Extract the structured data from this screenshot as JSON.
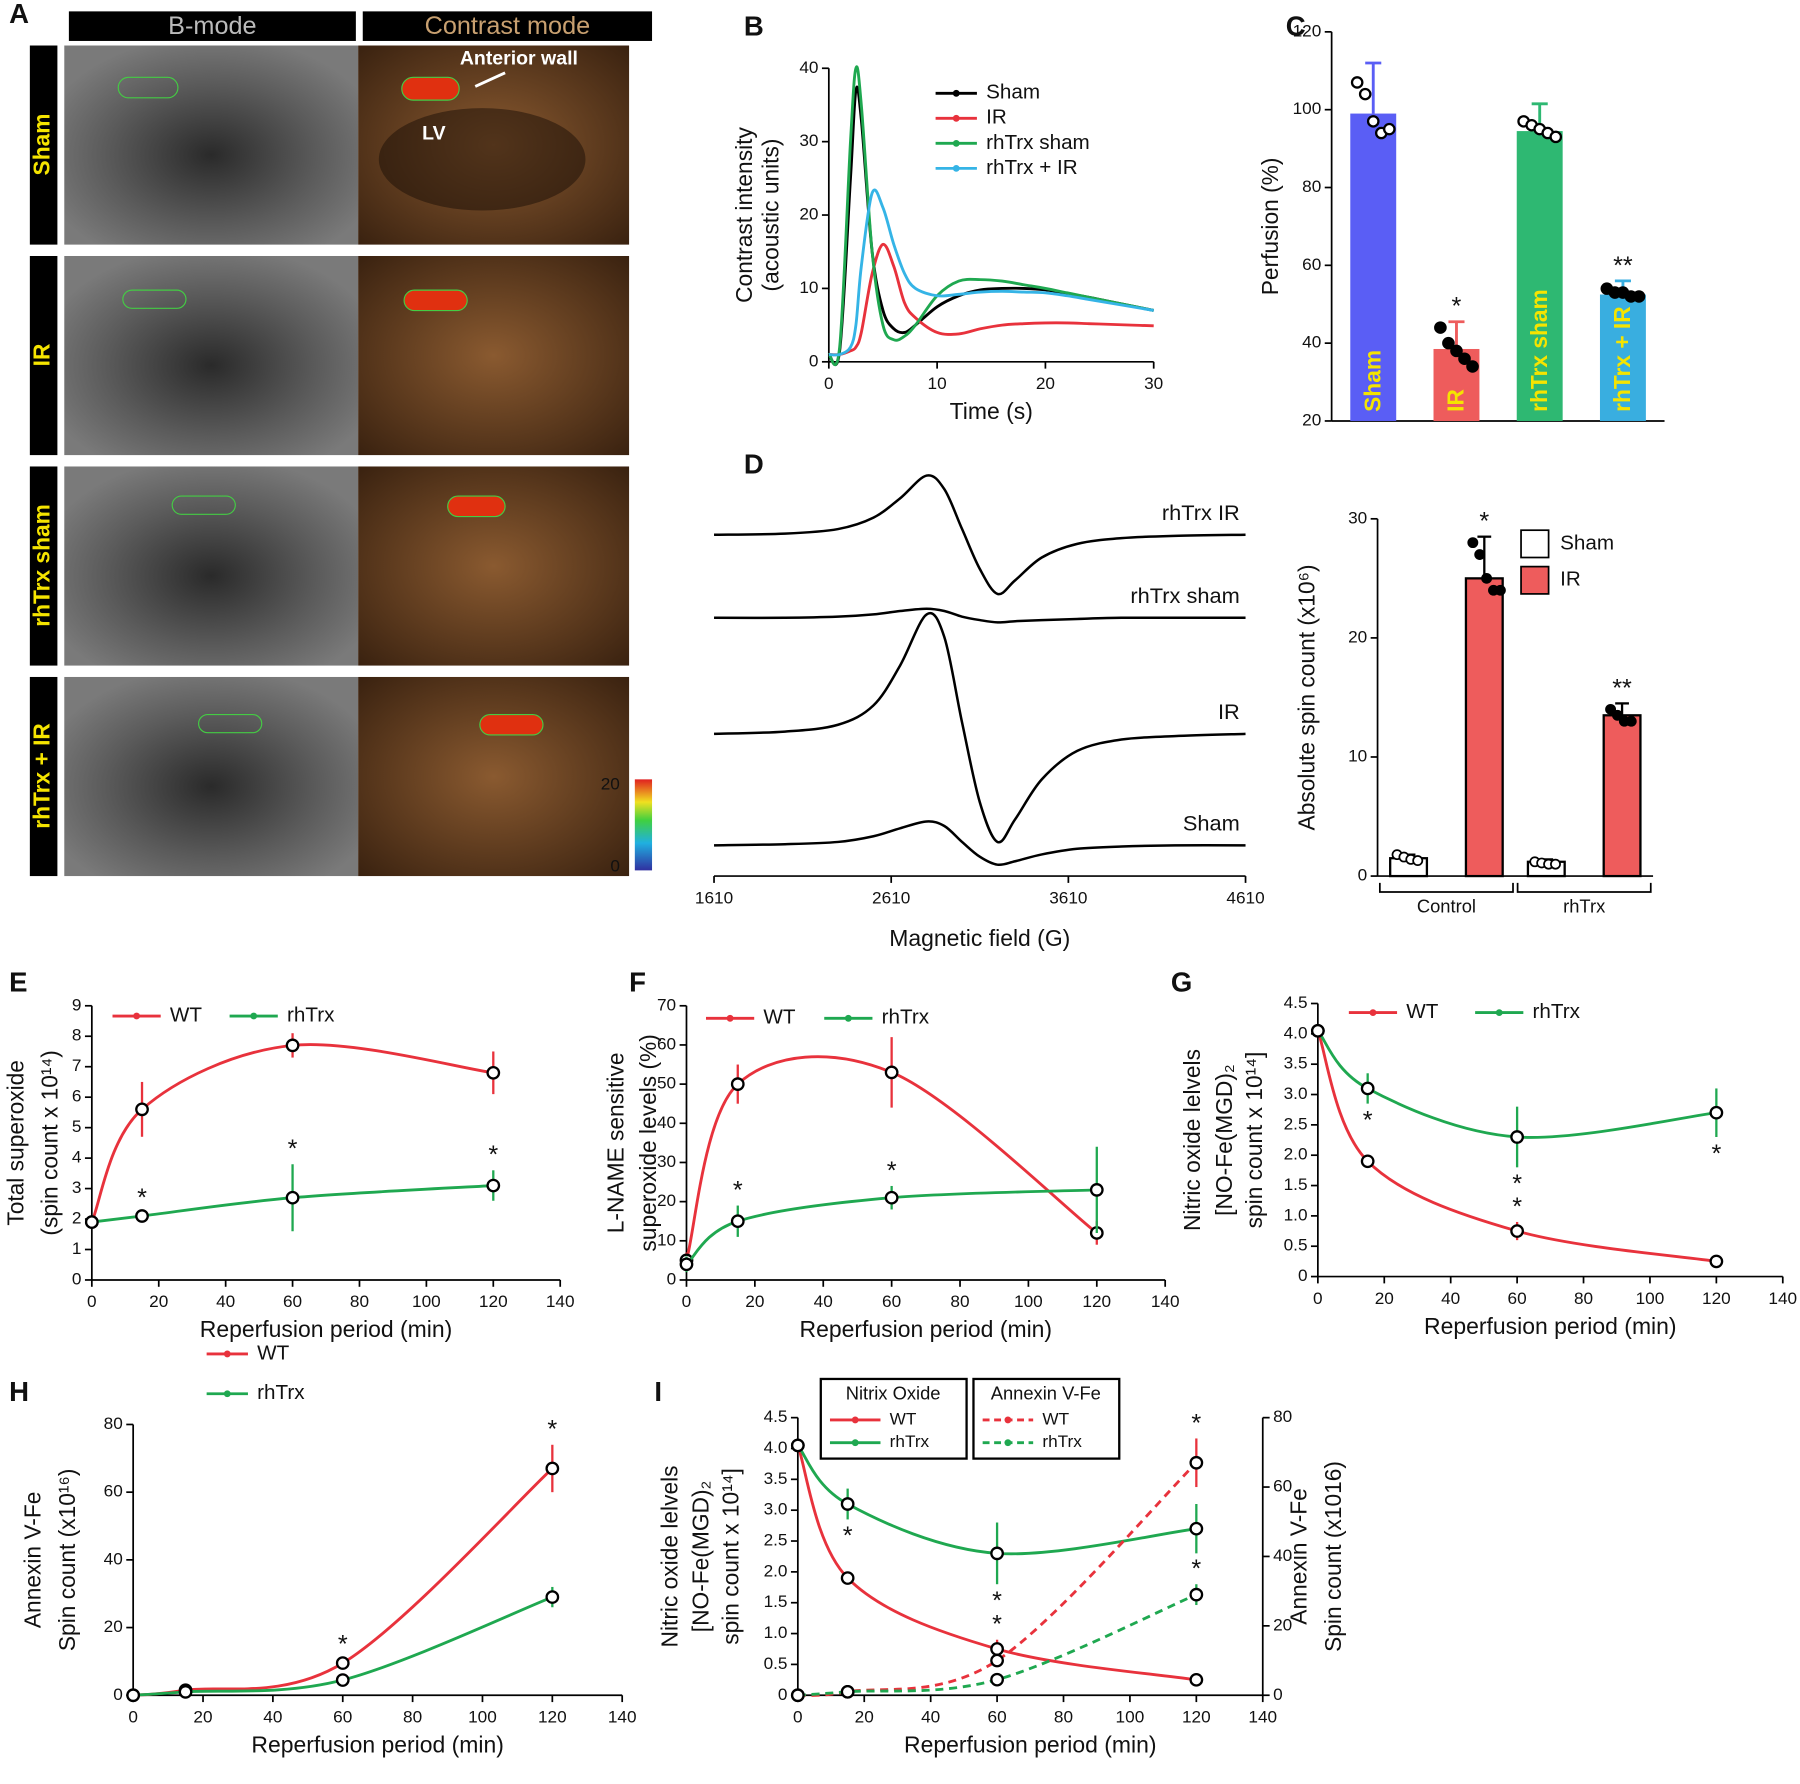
{
  "panel_a": {
    "panel": "A",
    "headers": [
      "B-mode",
      "Contrast mode"
    ],
    "rows": [
      "Sham",
      "IR",
      "rhTrx sham",
      "rhTrx + IR"
    ],
    "annotations": [
      "Anterior wall",
      "LV"
    ],
    "colorbar_ticks": [
      20,
      0
    ]
  },
  "chart_data": [
    {
      "type": "line",
      "panel": "B",
      "xlabel": "Time (s)",
      "ylabel": [
        "Contrast intensity",
        "(acoustic units)"
      ],
      "x": [
        0,
        1,
        2,
        2.5,
        3,
        4,
        5,
        6,
        7,
        8,
        10,
        12,
        14,
        16,
        18,
        20,
        22,
        24,
        26,
        28,
        30
      ],
      "xlim": [
        0,
        30
      ],
      "xticks": [
        0,
        10,
        20,
        30
      ],
      "ylim": [
        0,
        40
      ],
      "yticks": [
        0,
        10,
        20,
        30,
        40
      ],
      "series": [
        {
          "name": "Sham",
          "color": "#000000",
          "values": [
            1,
            1.5,
            25,
            37,
            33,
            15,
            7,
            4.5,
            4,
            5,
            7.5,
            9,
            9.8,
            10,
            10,
            9.8,
            9.3,
            8.8,
            8.2,
            7.6,
            7
          ]
        },
        {
          "name": "IR",
          "color": "#e8323c",
          "values": [
            1,
            1,
            1.5,
            2,
            4,
            12,
            16,
            13,
            8,
            6,
            4,
            3.8,
            4.5,
            5,
            5.2,
            5.3,
            5.3,
            5.2,
            5.1,
            5,
            4.9
          ]
        },
        {
          "name": "rhTrx sham",
          "color": "#1fa850",
          "values": [
            1,
            2,
            30,
            40,
            35,
            15,
            5,
            3,
            3.5,
            5,
            9,
            11,
            11.2,
            11,
            10.5,
            10,
            9.4,
            8.8,
            8.2,
            7.6,
            7
          ]
        },
        {
          "name": "rhTrx + IR",
          "color": "#35b4e6",
          "values": [
            1,
            1,
            2,
            5,
            13,
            23,
            21,
            16,
            12,
            10,
            9,
            9.2,
            9.5,
            9.6,
            9.5,
            9.4,
            9,
            8.5,
            8,
            7.5,
            7
          ]
        }
      ]
    },
    {
      "type": "bar",
      "panel": "C",
      "ylabel": [
        "Perfusion (%)"
      ],
      "categories": [
        "Sham",
        "IR",
        "rhTrx sham",
        "rhTrx + IR"
      ],
      "values": [
        99,
        38.5,
        94.5,
        52.5
      ],
      "errors": [
        13,
        7,
        7,
        3.5
      ],
      "colors": [
        "#5a5ef5",
        "#ee5c5c",
        "#2eb872",
        "#39aee0"
      ],
      "points": [
        [
          107,
          104,
          97,
          94,
          95
        ],
        [
          44,
          40,
          38,
          36,
          34
        ],
        [
          97,
          96,
          95,
          94,
          93
        ],
        [
          54,
          53,
          53,
          52,
          52
        ]
      ],
      "significance": [
        null,
        "*",
        null,
        "**"
      ],
      "ylim": [
        20,
        120
      ],
      "yticks": [
        20,
        40,
        60,
        80,
        100,
        120
      ]
    },
    {
      "type": "spectrum",
      "panel": "D",
      "xlabel": "Magnetic field (G)",
      "x": [
        1610,
        2010,
        2310,
        2510,
        2660,
        2810,
        2910,
        3010,
        3110,
        3210,
        3310,
        3460,
        3660,
        3910,
        4210,
        4610
      ],
      "xlim": [
        1610,
        4610
      ],
      "xticks": [
        1610,
        2610,
        3610,
        4610
      ],
      "series": [
        {
          "name": "rhTrx IR",
          "color": "#000000",
          "values": [
            0,
            1,
            5,
            15,
            32,
            52,
            40,
            5,
            -30,
            -52,
            -40,
            -20,
            -8,
            -3,
            -1,
            0
          ]
        },
        {
          "name": "rhTrx sham",
          "color": "#000000",
          "values": [
            0,
            0,
            1,
            3,
            6,
            8,
            6,
            1,
            -2,
            -4,
            -3,
            -2,
            -1,
            0,
            0,
            0
          ]
        },
        {
          "name": "IR",
          "color": "#000000",
          "values": [
            0,
            2,
            8,
            25,
            60,
            105,
            85,
            10,
            -60,
            -95,
            -75,
            -40,
            -15,
            -5,
            -2,
            0
          ]
        },
        {
          "name": "Sham",
          "color": "#000000",
          "values": [
            0,
            1,
            3,
            8,
            15,
            21,
            17,
            3,
            -10,
            -17,
            -14,
            -8,
            -3,
            -1,
            0,
            0
          ]
        }
      ]
    },
    {
      "type": "grouped_bar",
      "ylabel": [
        "Absolute spin count (x10⁶)"
      ],
      "categories": [
        "Control",
        "rhTrx"
      ],
      "series": [
        {
          "name": "Sham",
          "color": "#ffffff",
          "values": [
            1.5,
            1.2
          ],
          "errors": [
            0.3,
            0.2
          ],
          "points": [
            [
              1.8,
              1.6,
              1.4,
              1.3
            ],
            [
              1.2,
              1.1,
              1,
              1
            ]
          ]
        },
        {
          "name": "IR",
          "color": "#ee5c5c",
          "values": [
            25,
            13.5
          ],
          "errors": [
            3.5,
            1
          ],
          "points": [
            [
              28,
              27,
              25,
              24,
              24
            ],
            [
              14,
              13.5,
              13,
              13
            ]
          ],
          "significance": [
            "*",
            "**"
          ]
        }
      ],
      "ylim": [
        0,
        30
      ],
      "yticks": [
        0,
        10,
        20,
        30
      ]
    },
    {
      "type": "line",
      "panel": "E",
      "xlabel": "Reperfusion period (min)",
      "ylabel": [
        "Total superoxide",
        "(spin count  x 10¹⁴)"
      ],
      "x": [
        0,
        15,
        60,
        120
      ],
      "xlim": [
        0,
        140
      ],
      "xticks": [
        0,
        20,
        40,
        60,
        80,
        100,
        120,
        140
      ],
      "ylim": [
        0,
        9
      ],
      "yticks": [
        0,
        1,
        2,
        3,
        4,
        5,
        6,
        7,
        8,
        9
      ],
      "markers": true,
      "series": [
        {
          "name": "WT",
          "color": "#e8323c",
          "values": [
            1.9,
            5.6,
            7.7,
            6.8
          ],
          "errors": [
            0.1,
            0.9,
            0.4,
            0.7
          ]
        },
        {
          "name": "rhTrx",
          "color": "#1fa850",
          "values": [
            1.9,
            2.1,
            2.7,
            3.1
          ],
          "errors": [
            0.1,
            0.1,
            1.1,
            0.5
          ],
          "significance": [
            null,
            "*",
            "*",
            "*"
          ]
        }
      ]
    },
    {
      "type": "line",
      "panel": "F",
      "xlabel": "Reperfusion period (min)",
      "ylabel": [
        "L-NAME sensitive",
        "superoxide levels (%)"
      ],
      "x": [
        0,
        15,
        60,
        120
      ],
      "xlim": [
        0,
        140
      ],
      "xticks": [
        0,
        20,
        40,
        60,
        80,
        100,
        120,
        140
      ],
      "ylim": [
        0,
        70
      ],
      "yticks": [
        0,
        10,
        20,
        30,
        40,
        50,
        60,
        70
      ],
      "markers": true,
      "series": [
        {
          "name": "WT",
          "color": "#e8323c",
          "values": [
            5,
            50,
            53,
            12
          ],
          "errors": [
            2,
            5,
            9,
            3
          ]
        },
        {
          "name": "rhTrx",
          "color": "#1fa850",
          "values": [
            4,
            15,
            21,
            23
          ],
          "errors": [
            2,
            4,
            3,
            11
          ],
          "significance": [
            null,
            "*",
            "*",
            null
          ]
        }
      ]
    },
    {
      "type": "line",
      "panel": "G",
      "xlabel": "Reperfusion period (min)",
      "ylabel": [
        "Nitric oxide lelvels",
        "[NO-Fe(MGD)₂",
        "spin count x 10¹⁴]"
      ],
      "x": [
        0,
        15,
        60,
        120
      ],
      "xlim": [
        0,
        140
      ],
      "xticks": [
        0,
        20,
        40,
        60,
        80,
        100,
        120,
        140
      ],
      "ylim": [
        0,
        4.5
      ],
      "yticks": [
        0,
        0.5,
        {
          "value": 1,
          "label": "1.0"
        },
        1.5,
        {
          "value": 2,
          "label": "2.0"
        },
        2.5,
        {
          "value": 3,
          "label": "3.0"
        },
        3.5,
        {
          "value": 4,
          "label": "4.0"
        },
        4.5
      ],
      "markers": true,
      "series": [
        {
          "name": "WT",
          "color": "#e8323c",
          "values": [
            4.05,
            1.9,
            0.75,
            0.25
          ],
          "errors": [
            0.1,
            0.05,
            0.15,
            0.05
          ],
          "significance": [
            null,
            null,
            "*",
            null
          ]
        },
        {
          "name": "rhTrx",
          "color": "#1fa850",
          "values": [
            4.05,
            3.1,
            2.3,
            2.7
          ],
          "errors": [
            0.1,
            0.25,
            0.5,
            0.4
          ],
          "significance": [
            null,
            "*",
            "*",
            "*"
          ]
        }
      ]
    },
    {
      "type": "line",
      "panel": "H",
      "xlabel": "Reperfusion period (min)",
      "ylabel": [
        "Annexin V-Fe",
        "Spin count (x10¹⁶)"
      ],
      "x": [
        0,
        15,
        60,
        120
      ],
      "xlim": [
        0,
        140
      ],
      "xticks": [
        0,
        20,
        40,
        60,
        80,
        100,
        120,
        140
      ],
      "ylim": [
        0,
        80
      ],
      "yticks": [
        0,
        20,
        40,
        60,
        80
      ],
      "markers": true,
      "series": [
        {
          "name": "WT",
          "color": "#e8323c",
          "values": [
            0,
            1.5,
            9.5,
            67
          ],
          "errors": [
            0.3,
            0.5,
            1,
            7
          ],
          "significance": [
            null,
            null,
            "*",
            "*"
          ]
        },
        {
          "name": "rhTrx",
          "color": "#1fa850",
          "values": [
            0,
            1,
            4.5,
            29
          ],
          "errors": [
            0.2,
            0.3,
            0.8,
            3
          ]
        }
      ]
    },
    {
      "type": "line",
      "panel": "I",
      "xlabel": "Reperfusion period (min)",
      "ylabel": [
        "Nitric oxide lelvels",
        "[NO-Fe(MGD)₂",
        "spin count x 10¹⁴]"
      ],
      "y2label": [
        "Annexin V-Fe",
        "Spin count (x1016)"
      ],
      "legend_titles": [
        "Nitrix Oxide",
        "Annexin V-Fe"
      ],
      "x": [
        0,
        15,
        60,
        120
      ],
      "xlim": [
        0,
        140
      ],
      "xticks": [
        0,
        20,
        40,
        60,
        80,
        100,
        120,
        140
      ],
      "ylim": [
        0,
        4.5
      ],
      "yticks": [
        0,
        0.5,
        {
          "value": 1,
          "label": "1.0"
        },
        1.5,
        {
          "value": 2,
          "label": "2.0"
        },
        2.5,
        {
          "value": 3,
          "label": "3.0"
        },
        3.5,
        {
          "value": 4,
          "label": "4.0"
        },
        4.5
      ],
      "y2lim": [
        0,
        80
      ],
      "y2ticks": [
        0,
        20,
        40,
        60,
        80
      ],
      "markers": true,
      "series": [
        {
          "name": "WT",
          "color": "#e8323c",
          "values": [
            4.05,
            1.9,
            0.75,
            0.25
          ],
          "errors": [
            0.1,
            0.05,
            0.15,
            0.05
          ],
          "significance": [
            null,
            null,
            "*",
            null
          ]
        },
        {
          "name": "rhTrx",
          "color": "#1fa850",
          "values": [
            4.05,
            3.1,
            2.3,
            2.7
          ],
          "errors": [
            0.1,
            0.25,
            0.5,
            0.4
          ],
          "significance": [
            null,
            "*",
            "*",
            null
          ]
        },
        {
          "name": "WT",
          "color": "#e8323c",
          "axis": "y2",
          "line_style": "dashed",
          "values": [
            0,
            1,
            10,
            67
          ],
          "errors": [
            0.3,
            0.5,
            1,
            7
          ],
          "significance": [
            null,
            null,
            null,
            "*"
          ]
        },
        {
          "name": "rhTrx",
          "color": "#1fa850",
          "axis": "y2",
          "line_style": "dashed",
          "values": [
            0,
            1,
            4.5,
            29
          ],
          "errors": [
            0.2,
            0.3,
            0.8,
            3
          ],
          "significance": [
            null,
            null,
            null,
            "*"
          ]
        }
      ]
    }
  ]
}
